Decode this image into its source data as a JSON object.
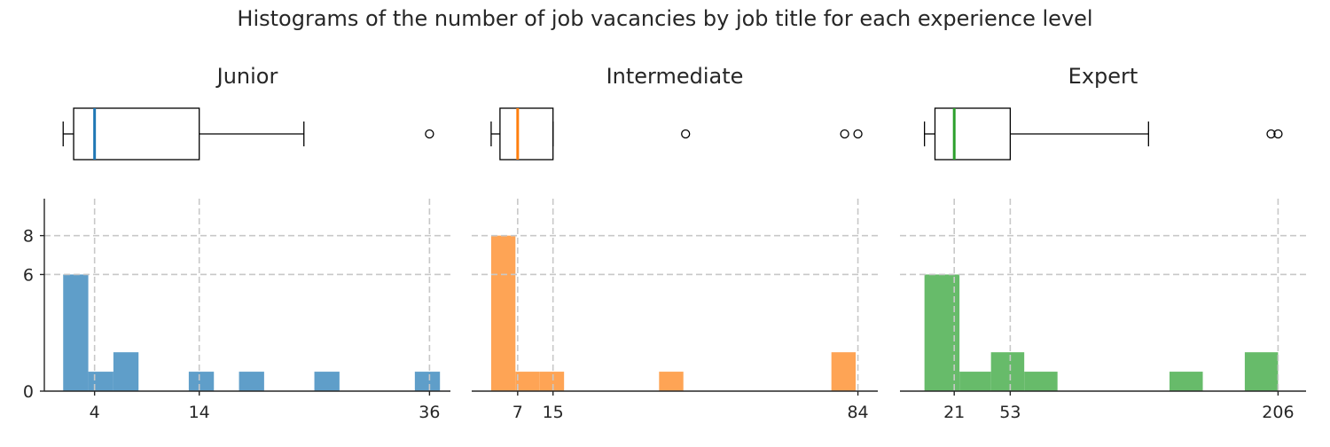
{
  "title": "Histograms of the number of job vacancies by job title for each experience level",
  "chart_data": [
    {
      "type": "histogram",
      "title": "Junior",
      "color": "#5f9ec9",
      "median_color": "#1f77b4",
      "boxplot": {
        "min": 1,
        "q1": 2,
        "median": 4,
        "q3": 14,
        "whisker_high": 24,
        "fliers": [
          36
        ]
      },
      "bins": [
        {
          "x0": 1,
          "x1": 3.4,
          "count": 6
        },
        {
          "x0": 3.4,
          "x1": 5.8,
          "count": 1
        },
        {
          "x0": 5.8,
          "x1": 8.2,
          "count": 2
        },
        {
          "x0": 13,
          "x1": 15.4,
          "count": 1
        },
        {
          "x0": 17.8,
          "x1": 20.2,
          "count": 1
        },
        {
          "x0": 25,
          "x1": 27.4,
          "count": 1
        },
        {
          "x0": 34.6,
          "x1": 37,
          "count": 1
        }
      ],
      "xlim": [
        -0.8,
        38
      ],
      "ylim": [
        0,
        9.9
      ],
      "xticks": [
        4,
        14,
        36
      ],
      "yticks": [
        0,
        6,
        8
      ],
      "ygrid": [
        6,
        8
      ]
    },
    {
      "type": "histogram",
      "title": "Intermediate",
      "color": "#fea455",
      "median_color": "#ff7f0e",
      "boxplot": {
        "min": 1,
        "q1": 3,
        "median": 7,
        "q3": 15,
        "whisker_high": 15,
        "fliers": [
          45,
          81,
          84
        ]
      },
      "bins": [
        {
          "x0": 1,
          "x1": 6.5,
          "count": 8
        },
        {
          "x0": 6.5,
          "x1": 12,
          "count": 1
        },
        {
          "x0": 12,
          "x1": 17.5,
          "count": 1
        },
        {
          "x0": 39,
          "x1": 44.5,
          "count": 1
        },
        {
          "x0": 78,
          "x1": 83.5,
          "count": 2
        }
      ],
      "xlim": [
        -3.4,
        88.5
      ],
      "ylim": [
        0,
        9.9
      ],
      "xticks": [
        7,
        15,
        84
      ],
      "yticks": [],
      "ygrid": [
        6,
        8
      ]
    },
    {
      "type": "histogram",
      "title": "Expert",
      "color": "#67bb6a",
      "median_color": "#2ca02c",
      "boxplot": {
        "min": 4,
        "q1": 10,
        "median": 21,
        "q3": 53,
        "whisker_high": 132,
        "fliers": [
          202,
          206
        ]
      },
      "bins": [
        {
          "x0": 4,
          "x1": 24,
          "count": 6
        },
        {
          "x0": 24,
          "x1": 42,
          "count": 1
        },
        {
          "x0": 42,
          "x1": 61,
          "count": 2
        },
        {
          "x0": 61,
          "x1": 80,
          "count": 1
        },
        {
          "x0": 144,
          "x1": 163,
          "count": 1
        },
        {
          "x0": 187,
          "x1": 206,
          "count": 2
        }
      ],
      "xlim": [
        -10,
        222
      ],
      "ylim": [
        0,
        9.9
      ],
      "xticks": [
        21,
        53,
        206
      ],
      "yticks": [],
      "ygrid": [
        6,
        8
      ]
    }
  ]
}
